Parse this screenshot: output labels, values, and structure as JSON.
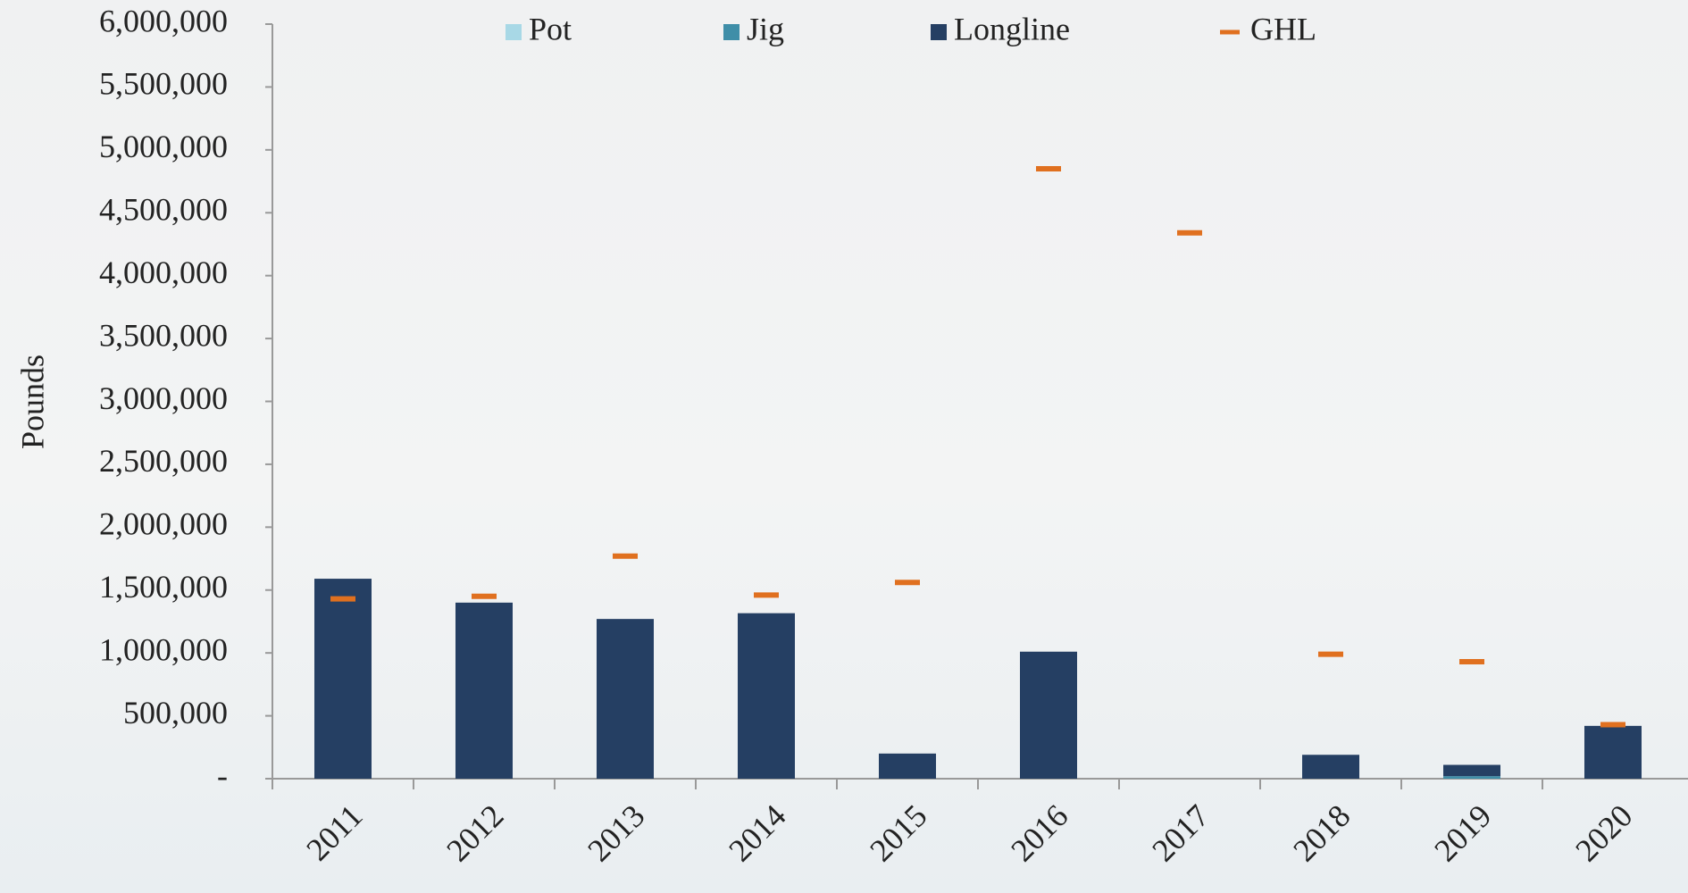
{
  "chart_data": {
    "type": "bar",
    "y_label": "Pounds",
    "categories": [
      "2011",
      "2012",
      "2013",
      "2014",
      "2015",
      "2016",
      "2017",
      "2018",
      "2019",
      "2020"
    ],
    "series": [
      {
        "name": "Pot",
        "color": "#a8d8e6",
        "stack": true,
        "values": [
          0,
          0,
          0,
          0,
          0,
          0,
          0,
          0,
          0,
          0
        ]
      },
      {
        "name": "Jig",
        "color": "#3f8ea8",
        "stack": true,
        "values": [
          0,
          0,
          0,
          0,
          0,
          0,
          0,
          0,
          20000,
          0
        ]
      },
      {
        "name": "Longline",
        "color": "#253f63",
        "stack": true,
        "values": [
          1590000,
          1400000,
          1270000,
          1316000,
          200000,
          1010000,
          0,
          190000,
          90000,
          420000
        ]
      },
      {
        "name": "GHL",
        "color": "#e0701f",
        "marker": "dash",
        "values": [
          1430000,
          1450000,
          1770000,
          1460000,
          1560000,
          4850000,
          4340000,
          990000,
          930000,
          430000
        ]
      }
    ],
    "ylim": [
      0,
      6000000
    ],
    "yticks": [
      {
        "value": 0,
        "label": "-"
      },
      {
        "value": 500000,
        "label": "500,000"
      },
      {
        "value": 1000000,
        "label": "1,000,000"
      },
      {
        "value": 1500000,
        "label": "1,500,000"
      },
      {
        "value": 2000000,
        "label": "2,000,000"
      },
      {
        "value": 2500000,
        "label": "2,500,000"
      },
      {
        "value": 3000000,
        "label": "3,000,000"
      },
      {
        "value": 3500000,
        "label": "3,500,000"
      },
      {
        "value": 4000000,
        "label": "4,000,000"
      },
      {
        "value": 4500000,
        "label": "4,500,000"
      },
      {
        "value": 5000000,
        "label": "5,000,000"
      },
      {
        "value": 5500000,
        "label": "5,500,000"
      },
      {
        "value": 6000000,
        "label": "6,000,000"
      }
    ],
    "grid": false,
    "legend": "top"
  }
}
